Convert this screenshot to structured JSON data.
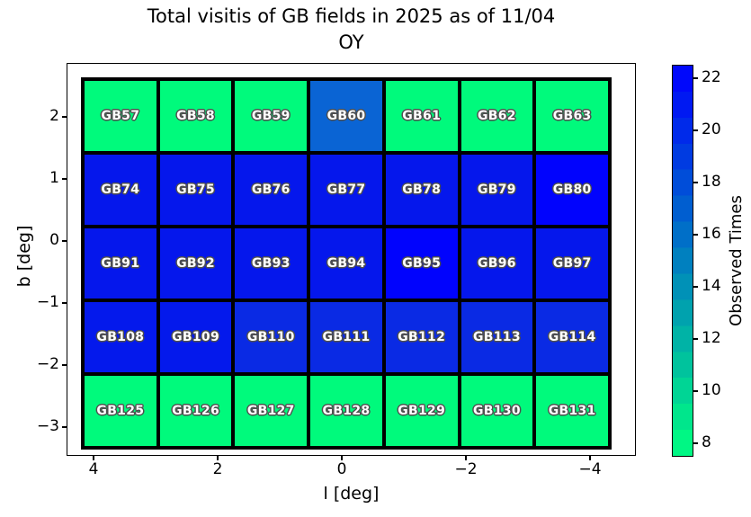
{
  "chart_data": {
    "type": "heatmap",
    "title_lines": [
      "Total visitis of GB fields in 2025 as of 11/04",
      "OY"
    ],
    "xlabel": "l [deg]",
    "ylabel": "b [deg]",
    "x_ticks": [
      "4",
      "2",
      "0",
      "−2",
      "−4"
    ],
    "y_ticks": [
      "2",
      "1",
      "0",
      "−1",
      "−2",
      "−3"
    ],
    "x_axis_inverted": true,
    "grid": {
      "columns": 7,
      "rows": 5
    },
    "colorbar": {
      "label": "Observed Times",
      "ticks": [
        22,
        20,
        18,
        16,
        14,
        12,
        10,
        8
      ],
      "range": [
        8,
        22
      ],
      "low_color": "#00fa7c",
      "mid_color": "#0080bf",
      "high_color": "#0008fb"
    },
    "rows": [
      {
        "fields": [
          {
            "label": "GB57",
            "observed_times": 8,
            "color": "#00fa7c"
          },
          {
            "label": "GB58",
            "observed_times": 8,
            "color": "#00fa7c"
          },
          {
            "label": "GB59",
            "observed_times": 8,
            "color": "#00fa7c"
          },
          {
            "label": "GB60",
            "observed_times": 16,
            "color": "#0a64d4"
          },
          {
            "label": "GB61",
            "observed_times": 8,
            "color": "#00fa7c"
          },
          {
            "label": "GB62",
            "observed_times": 8,
            "color": "#00fa7c"
          },
          {
            "label": "GB63",
            "observed_times": 8,
            "color": "#00fa7c"
          }
        ]
      },
      {
        "fields": [
          {
            "label": "GB74",
            "observed_times": 21,
            "color": "#0517ec"
          },
          {
            "label": "GB75",
            "observed_times": 21,
            "color": "#0517ec"
          },
          {
            "label": "GB76",
            "observed_times": 21,
            "color": "#0517ec"
          },
          {
            "label": "GB77",
            "observed_times": 21,
            "color": "#0517ec"
          },
          {
            "label": "GB78",
            "observed_times": 21,
            "color": "#0517ec"
          },
          {
            "label": "GB79",
            "observed_times": 21,
            "color": "#0517ec"
          },
          {
            "label": "GB80",
            "observed_times": 22,
            "color": "#0103fd"
          }
        ]
      },
      {
        "fields": [
          {
            "label": "GB91",
            "observed_times": 21,
            "color": "#0517ec"
          },
          {
            "label": "GB92",
            "observed_times": 21,
            "color": "#0517ec"
          },
          {
            "label": "GB93",
            "observed_times": 21,
            "color": "#0517ec"
          },
          {
            "label": "GB94",
            "observed_times": 21,
            "color": "#0517ec"
          },
          {
            "label": "GB95",
            "observed_times": 22,
            "color": "#0103fd"
          },
          {
            "label": "GB96",
            "observed_times": 21,
            "color": "#0517ec"
          },
          {
            "label": "GB97",
            "observed_times": 21,
            "color": "#0517ec"
          }
        ]
      },
      {
        "fields": [
          {
            "label": "GB108",
            "observed_times": 21,
            "color": "#0419ec"
          },
          {
            "label": "GB109",
            "observed_times": 21,
            "color": "#0419ec"
          },
          {
            "label": "GB110",
            "observed_times": 20,
            "color": "#0a2ae4"
          },
          {
            "label": "GB111",
            "observed_times": 20,
            "color": "#0a2ae4"
          },
          {
            "label": "GB112",
            "observed_times": 20,
            "color": "#0a2ae4"
          },
          {
            "label": "GB113",
            "observed_times": 20,
            "color": "#0a2ae4"
          },
          {
            "label": "GB114",
            "observed_times": 20,
            "color": "#0a2ae4"
          }
        ]
      },
      {
        "fields": [
          {
            "label": "GB125",
            "observed_times": 8,
            "color": "#00fa7c"
          },
          {
            "label": "GB126",
            "observed_times": 8,
            "color": "#00fa7c"
          },
          {
            "label": "GB127",
            "observed_times": 8,
            "color": "#00fa7c"
          },
          {
            "label": "GB128",
            "observed_times": 8,
            "color": "#00fa7c"
          },
          {
            "label": "GB129",
            "observed_times": 8,
            "color": "#00fa7c"
          },
          {
            "label": "GB130",
            "observed_times": 8,
            "color": "#00fa7c"
          },
          {
            "label": "GB131",
            "observed_times": 8,
            "color": "#00fa7c"
          }
        ]
      }
    ]
  }
}
